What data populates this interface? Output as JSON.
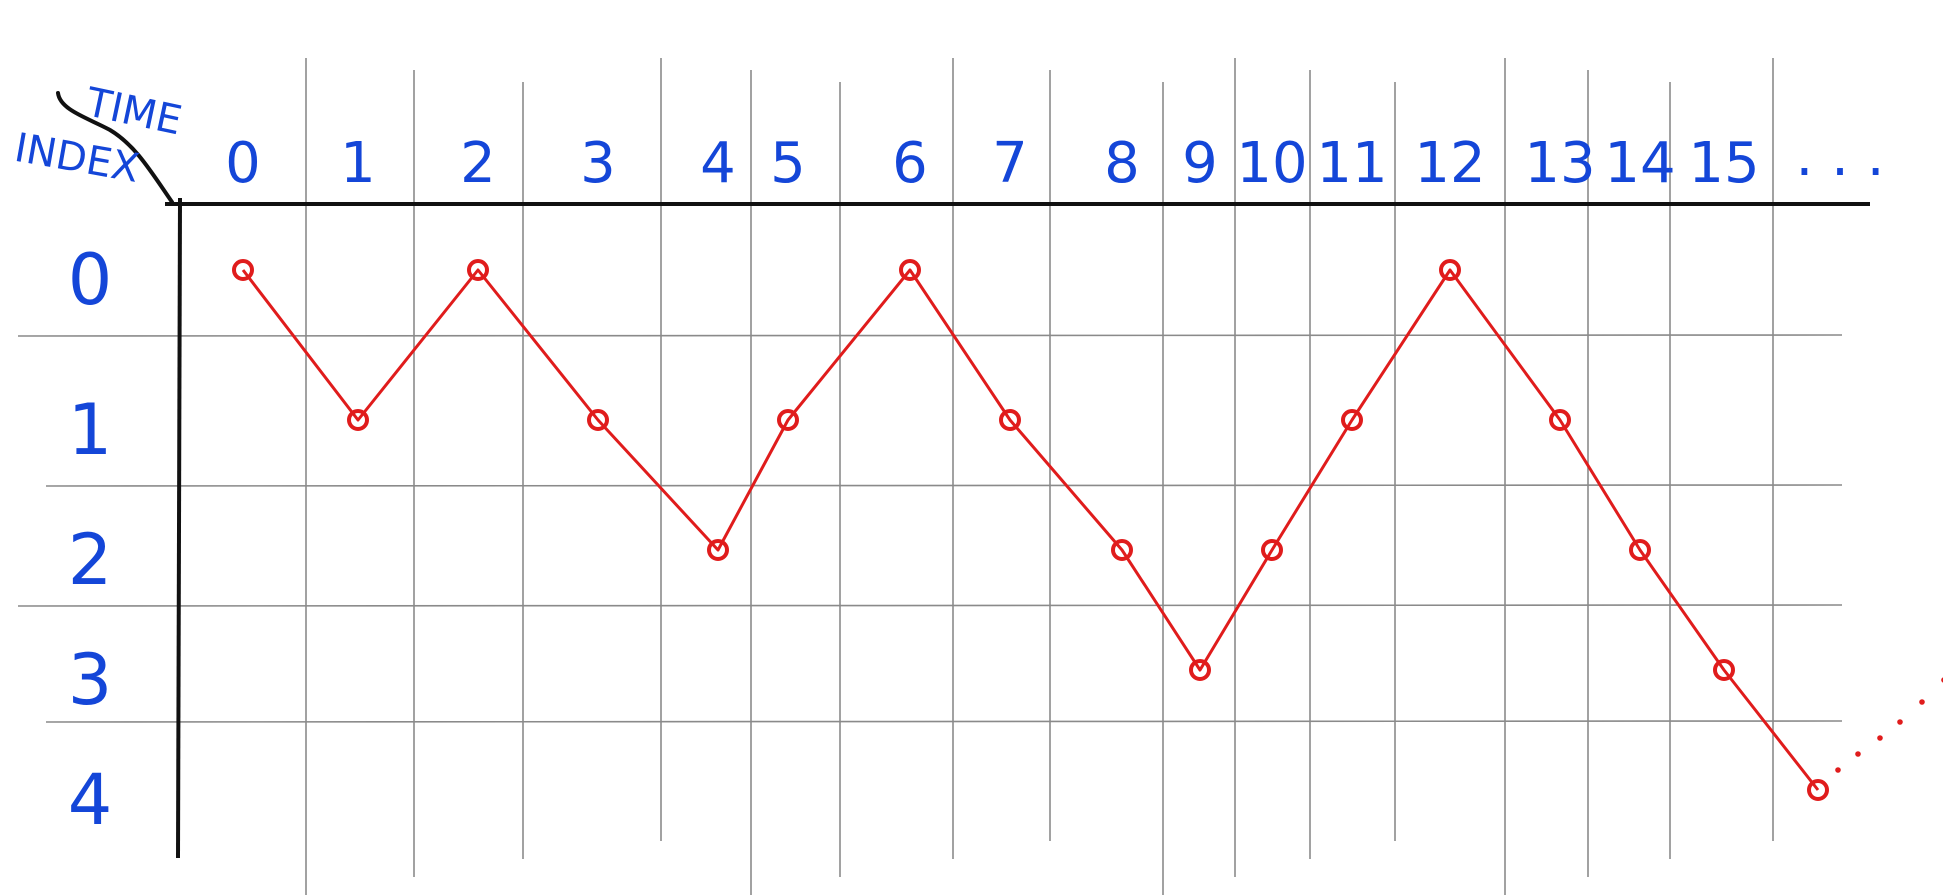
{
  "corner": {
    "time_label": "TIME",
    "index_label": "INDEX"
  },
  "columns": [
    "0",
    "1",
    "2",
    "3",
    "4",
    "5",
    "6",
    "7",
    "8",
    "9",
    "10",
    "11",
    "12",
    "13",
    "14",
    "15"
  ],
  "columns_more": ". . .",
  "rows": [
    "0",
    "1",
    "2",
    "3",
    "4"
  ],
  "path": [
    0,
    1,
    0,
    1,
    2,
    1,
    0,
    1,
    2,
    3,
    2,
    1,
    0,
    1,
    2,
    3,
    4
  ],
  "colors": {
    "ink": "#1446d8",
    "path": "#e01c1c",
    "axis": "#111111",
    "grid": "#8a8a8a"
  }
}
